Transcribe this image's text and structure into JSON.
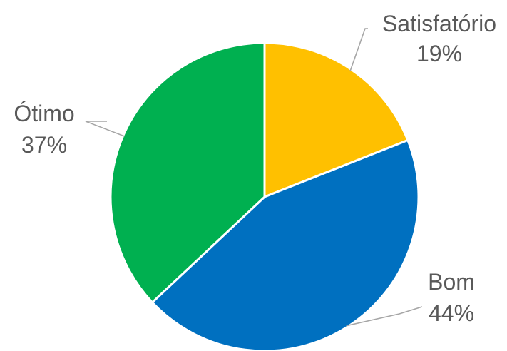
{
  "chart_data": {
    "type": "pie",
    "title": "",
    "slices": [
      {
        "label": "Satisfatório",
        "value": 19,
        "display": "19%",
        "color": "#FFC000"
      },
      {
        "label": "Bom",
        "value": 44,
        "display": "44%",
        "color": "#0070C0"
      },
      {
        "label": "Ótimo",
        "value": 37,
        "display": "37%",
        "color": "#00B050"
      }
    ],
    "start_angle_deg": 0,
    "direction": "clockwise",
    "legend": "none",
    "data_labels": "outside-with-leader-lines"
  }
}
